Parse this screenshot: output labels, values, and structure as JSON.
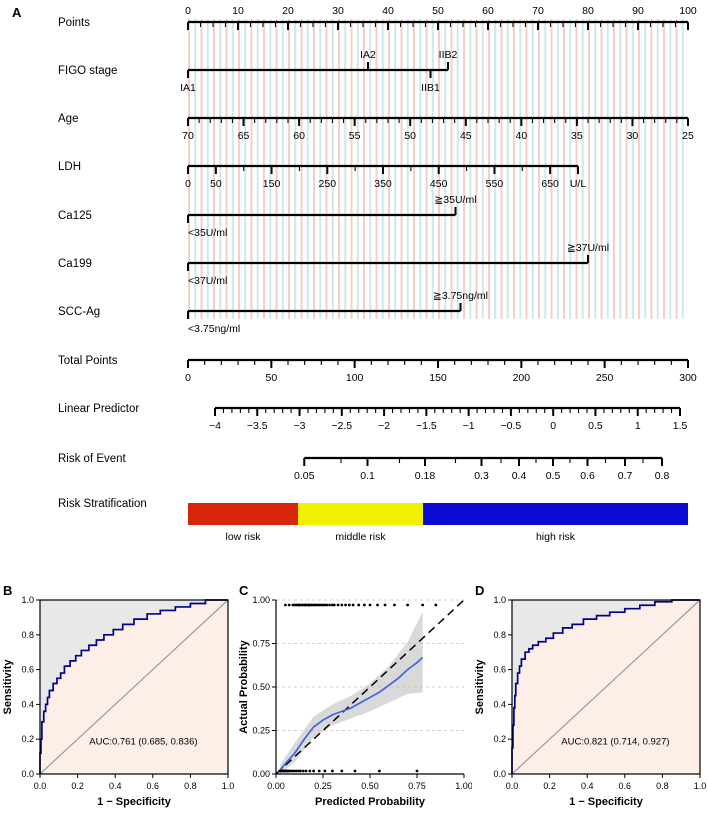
{
  "figure": {
    "background": "#ffffff",
    "panels": [
      {
        "letter": "A"
      },
      {
        "letter": "B"
      },
      {
        "letter": "C"
      },
      {
        "letter": "D"
      }
    ]
  },
  "chart_data": [
    {
      "id": "nomogram",
      "type": "nomogram",
      "panel": "A",
      "points_range": [
        0,
        100
      ],
      "stripe_colors": {
        "pink": "#f5cfc6",
        "blue": "#cfe8ea"
      },
      "rows": [
        {
          "id": "points",
          "label": "Points",
          "kind": "axis",
          "label_side": "above",
          "line": [
            0,
            100
          ],
          "minor_step_p": 2.5,
          "majors": [
            {
              "p": 0,
              "t": "0"
            },
            {
              "p": 10,
              "t": "10"
            },
            {
              "p": 20,
              "t": "20"
            },
            {
              "p": 30,
              "t": "30"
            },
            {
              "p": 40,
              "t": "40"
            },
            {
              "p": 50,
              "t": "50"
            },
            {
              "p": 60,
              "t": "60"
            },
            {
              "p": 70,
              "t": "70"
            },
            {
              "p": 80,
              "t": "80"
            },
            {
              "p": 90,
              "t": "90"
            },
            {
              "p": 100,
              "t": "100"
            }
          ]
        },
        {
          "id": "figo",
          "label": "FIGO stage",
          "kind": "categorical",
          "line": [
            0,
            52
          ],
          "cats": [
            {
              "p": 0,
              "t": "IA1",
              "side": "below"
            },
            {
              "p": 36,
              "t": "IA2",
              "side": "above"
            },
            {
              "p": 48.5,
              "t": "IIB1",
              "side": "below"
            },
            {
              "p": 52,
              "t": "IIB2",
              "side": "above"
            }
          ]
        },
        {
          "id": "age",
          "label": "Age",
          "kind": "axis",
          "line": [
            0,
            100
          ],
          "minor_step_p": 2.2222,
          "majors": [
            {
              "p": 0,
              "t": "70"
            },
            {
              "p": 11.11,
              "t": "65"
            },
            {
              "p": 22.22,
              "t": "60"
            },
            {
              "p": 33.33,
              "t": "55"
            },
            {
              "p": 44.44,
              "t": "50"
            },
            {
              "p": 55.56,
              "t": "45"
            },
            {
              "p": 66.67,
              "t": "40"
            },
            {
              "p": 77.78,
              "t": "35"
            },
            {
              "p": 88.89,
              "t": "30"
            },
            {
              "p": 100,
              "t": "25"
            }
          ]
        },
        {
          "id": "ldh",
          "label": "LDH",
          "kind": "axis",
          "line": [
            0,
            78
          ],
          "minor_step_p": 5.5714,
          "majors": [
            {
              "p": 0,
              "t": "0"
            },
            {
              "p": 5.57,
              "t": "50"
            },
            {
              "p": 16.71,
              "t": "150"
            },
            {
              "p": 27.86,
              "t": "250"
            },
            {
              "p": 39,
              "t": "350"
            },
            {
              "p": 50.14,
              "t": "450"
            },
            {
              "p": 61.29,
              "t": "550"
            },
            {
              "p": 72.43,
              "t": "650"
            },
            {
              "p": 78,
              "t": "U/L"
            }
          ]
        },
        {
          "id": "ca125",
          "label": "Ca125",
          "kind": "categorical",
          "line": [
            0,
            53.5
          ],
          "cats": [
            {
              "p": 0,
              "t": "<35U/ml",
              "side": "below",
              "anchor": "start"
            },
            {
              "p": 53.5,
              "t": "≧35U/ml",
              "side": "above"
            }
          ]
        },
        {
          "id": "ca199",
          "label": "Ca199",
          "kind": "categorical",
          "line": [
            0,
            80
          ],
          "cats": [
            {
              "p": 0,
              "t": "<37U/ml",
              "side": "below",
              "anchor": "start"
            },
            {
              "p": 80,
              "t": "≧37U/ml",
              "side": "above"
            }
          ]
        },
        {
          "id": "sccag",
          "label": "SCC-Ag",
          "kind": "categorical",
          "line": [
            0,
            54.5
          ],
          "cats": [
            {
              "p": 0,
              "t": "<3.75ng/ml",
              "side": "below",
              "anchor": "start"
            },
            {
              "p": 54.5,
              "t": "≧3.75ng/ml",
              "side": "above"
            }
          ]
        },
        {
          "id": "total",
          "label": "Total Points",
          "kind": "axis",
          "line": [
            0,
            100
          ],
          "minor_step_p": 3.3333,
          "majors": [
            {
              "p": 0,
              "t": "0"
            },
            {
              "p": 16.67,
              "t": "50"
            },
            {
              "p": 33.33,
              "t": "100"
            },
            {
              "p": 50,
              "t": "150"
            },
            {
              "p": 66.67,
              "t": "200"
            },
            {
              "p": 83.33,
              "t": "250"
            },
            {
              "p": 100,
              "t": "300"
            }
          ]
        },
        {
          "id": "lp",
          "label": "Linear Predictor",
          "kind": "axis",
          "line": [
            5.4,
            98.4
          ],
          "minor_step_p": 1.6909,
          "majors": [
            {
              "p": 5.4,
              "t": "−4"
            },
            {
              "p": 13.85,
              "t": "−3.5"
            },
            {
              "p": 22.31,
              "t": "−3"
            },
            {
              "p": 30.76,
              "t": "−2.5"
            },
            {
              "p": 39.22,
              "t": "−2"
            },
            {
              "p": 47.67,
              "t": "−1.5"
            },
            {
              "p": 56.13,
              "t": "−1"
            },
            {
              "p": 64.58,
              "t": "−0.5"
            },
            {
              "p": 73.04,
              "t": "0"
            },
            {
              "p": 81.49,
              "t": "0.5"
            },
            {
              "p": 89.95,
              "t": "1"
            },
            {
              "p": 98.4,
              "t": "1.5"
            }
          ]
        },
        {
          "id": "risk",
          "label": "Risk of Event",
          "kind": "axis",
          "line": [
            23.25,
            94.8
          ],
          "majors": [
            {
              "p": 23.25,
              "t": "0.05"
            },
            {
              "p": 35.9,
              "t": "0.1"
            },
            {
              "p": 47.4,
              "t": "0.18"
            },
            {
              "p": 58.7,
              "t": "0.3"
            },
            {
              "p": 66.2,
              "t": "0.4"
            },
            {
              "p": 73,
              "t": "0.5"
            },
            {
              "p": 79.9,
              "t": "0.6"
            },
            {
              "p": 87.4,
              "t": "0.7"
            },
            {
              "p": 94.8,
              "t": "0.8"
            }
          ],
          "minors": [
            30.6,
            42.3,
            53.5,
            62.6,
            69.6,
            76.4,
            83.5,
            91
          ]
        },
        {
          "id": "strat",
          "label": "Risk Stratification",
          "kind": "bar",
          "segments": [
            {
              "t": "low risk",
              "p0": 0,
              "p1": 22,
              "color": "#d6250a"
            },
            {
              "t": "middle risk",
              "p0": 22,
              "p1": 47,
              "color": "#f0f000"
            },
            {
              "t": "high risk",
              "p0": 47,
              "p1": 100,
              "color": "#0a0ad2"
            }
          ]
        }
      ]
    },
    {
      "id": "roc_b",
      "panel": "B",
      "type": "line",
      "xlabel": "1 − Specificity",
      "ylabel": "Sensitivity",
      "xlim": [
        0,
        1
      ],
      "ylim": [
        0,
        1
      ],
      "xticks": [
        "0.0",
        "0.2",
        "0.4",
        "0.6",
        "0.8",
        "1.0"
      ],
      "yticks": [
        "0.0",
        "0.2",
        "0.4",
        "0.6",
        "0.8",
        "1.0"
      ],
      "auc_label": "AUC:0.761 (0.685, 0.836)",
      "curve": [
        [
          0,
          0
        ],
        [
          0.005,
          0.12
        ],
        [
          0.01,
          0.2
        ],
        [
          0.02,
          0.3
        ],
        [
          0.03,
          0.36
        ],
        [
          0.04,
          0.4
        ],
        [
          0.05,
          0.44
        ],
        [
          0.07,
          0.48
        ],
        [
          0.09,
          0.52
        ],
        [
          0.11,
          0.55
        ],
        [
          0.13,
          0.58
        ],
        [
          0.16,
          0.62
        ],
        [
          0.19,
          0.65
        ],
        [
          0.22,
          0.68
        ],
        [
          0.26,
          0.71
        ],
        [
          0.3,
          0.74
        ],
        [
          0.34,
          0.77
        ],
        [
          0.39,
          0.8
        ],
        [
          0.44,
          0.83
        ],
        [
          0.5,
          0.86
        ],
        [
          0.57,
          0.89
        ],
        [
          0.64,
          0.92
        ],
        [
          0.72,
          0.94
        ],
        [
          0.8,
          0.96
        ],
        [
          0.88,
          0.98
        ],
        [
          0.95,
          1
        ],
        [
          1,
          1
        ]
      ],
      "colors": {
        "curve": "#00008b",
        "fill_above": "#e8e8e8",
        "fill_below": "#fdefe8",
        "diagonal": "#9a9a9a"
      }
    },
    {
      "id": "calibration",
      "panel": "C",
      "type": "line",
      "xlabel": "Predicted Probability",
      "ylabel": "Actual Probability",
      "xlim": [
        0,
        1
      ],
      "ylim": [
        0,
        1
      ],
      "xticks": [
        "0.00",
        "0.25",
        "0.50",
        "0.75",
        "1.00"
      ],
      "yticks": [
        "0.00",
        "0.25",
        "0.50",
        "0.75",
        "1.00"
      ],
      "curve": [
        [
          0.02,
          0.02
        ],
        [
          0.05,
          0.06
        ],
        [
          0.1,
          0.12
        ],
        [
          0.15,
          0.2
        ],
        [
          0.2,
          0.27
        ],
        [
          0.25,
          0.31
        ],
        [
          0.3,
          0.34
        ],
        [
          0.35,
          0.36
        ],
        [
          0.4,
          0.38
        ],
        [
          0.45,
          0.41
        ],
        [
          0.5,
          0.44
        ],
        [
          0.55,
          0.47
        ],
        [
          0.6,
          0.51
        ],
        [
          0.65,
          0.55
        ],
        [
          0.7,
          0.6
        ],
        [
          0.75,
          0.64
        ],
        [
          0.78,
          0.67
        ]
      ],
      "ci_upper": [
        [
          0.02,
          0.05
        ],
        [
          0.1,
          0.18
        ],
        [
          0.2,
          0.33
        ],
        [
          0.3,
          0.4
        ],
        [
          0.4,
          0.45
        ],
        [
          0.5,
          0.52
        ],
        [
          0.6,
          0.62
        ],
        [
          0.7,
          0.76
        ],
        [
          0.78,
          0.93
        ]
      ],
      "ci_lower": [
        [
          0.02,
          0
        ],
        [
          0.1,
          0.07
        ],
        [
          0.2,
          0.21
        ],
        [
          0.3,
          0.28
        ],
        [
          0.4,
          0.32
        ],
        [
          0.5,
          0.36
        ],
        [
          0.6,
          0.41
        ],
        [
          0.7,
          0.46
        ],
        [
          0.78,
          0.47
        ]
      ],
      "rug_top": [
        0.05,
        0.07,
        0.09,
        0.1,
        0.11,
        0.12,
        0.125,
        0.13,
        0.14,
        0.15,
        0.155,
        0.16,
        0.17,
        0.175,
        0.18,
        0.19,
        0.2,
        0.21,
        0.22,
        0.23,
        0.24,
        0.25,
        0.26,
        0.27,
        0.285,
        0.3,
        0.31,
        0.33,
        0.35,
        0.37,
        0.39,
        0.41,
        0.44,
        0.47,
        0.5,
        0.54,
        0.58,
        0.63,
        0.7,
        0.78,
        0.85
      ],
      "rug_bottom": [
        0.02,
        0.025,
        0.03,
        0.035,
        0.04,
        0.045,
        0.05,
        0.055,
        0.06,
        0.065,
        0.07,
        0.08,
        0.09,
        0.1,
        0.11,
        0.12,
        0.13,
        0.145,
        0.16,
        0.18,
        0.2,
        0.23,
        0.26,
        0.3,
        0.35,
        0.42,
        0.55,
        0.75
      ],
      "colors": {
        "curve": "#3f64e0",
        "ribbon": "#b9b9b9",
        "ideal": "#000000",
        "grid": "#cfcfcf"
      }
    },
    {
      "id": "roc_d",
      "panel": "D",
      "type": "line",
      "xlabel": "1 − Specificity",
      "ylabel": "Sensitivity",
      "xlim": [
        0,
        1
      ],
      "ylim": [
        0,
        1
      ],
      "xticks": [
        "0.0",
        "0.2",
        "0.4",
        "0.6",
        "0.8",
        "1.0"
      ],
      "yticks": [
        "0.0",
        "0.2",
        "0.4",
        "0.6",
        "0.8",
        "1.0"
      ],
      "auc_label": "AUC:0.821 (0.714, 0.927)",
      "curve": [
        [
          0,
          0
        ],
        [
          0.005,
          0.15
        ],
        [
          0.01,
          0.28
        ],
        [
          0.015,
          0.38
        ],
        [
          0.02,
          0.45
        ],
        [
          0.03,
          0.52
        ],
        [
          0.04,
          0.58
        ],
        [
          0.05,
          0.62
        ],
        [
          0.07,
          0.66
        ],
        [
          0.09,
          0.7
        ],
        [
          0.11,
          0.72
        ],
        [
          0.14,
          0.74
        ],
        [
          0.18,
          0.76
        ],
        [
          0.22,
          0.78
        ],
        [
          0.27,
          0.81
        ],
        [
          0.32,
          0.84
        ],
        [
          0.38,
          0.86
        ],
        [
          0.45,
          0.89
        ],
        [
          0.52,
          0.91
        ],
        [
          0.6,
          0.93
        ],
        [
          0.68,
          0.95
        ],
        [
          0.76,
          0.97
        ],
        [
          0.85,
          0.99
        ],
        [
          0.92,
          1
        ],
        [
          1,
          1
        ]
      ],
      "colors": {
        "curve": "#00008b",
        "fill_above": "#e8e8e8",
        "fill_below": "#fdefe8",
        "diagonal": "#9a9a9a"
      }
    }
  ]
}
